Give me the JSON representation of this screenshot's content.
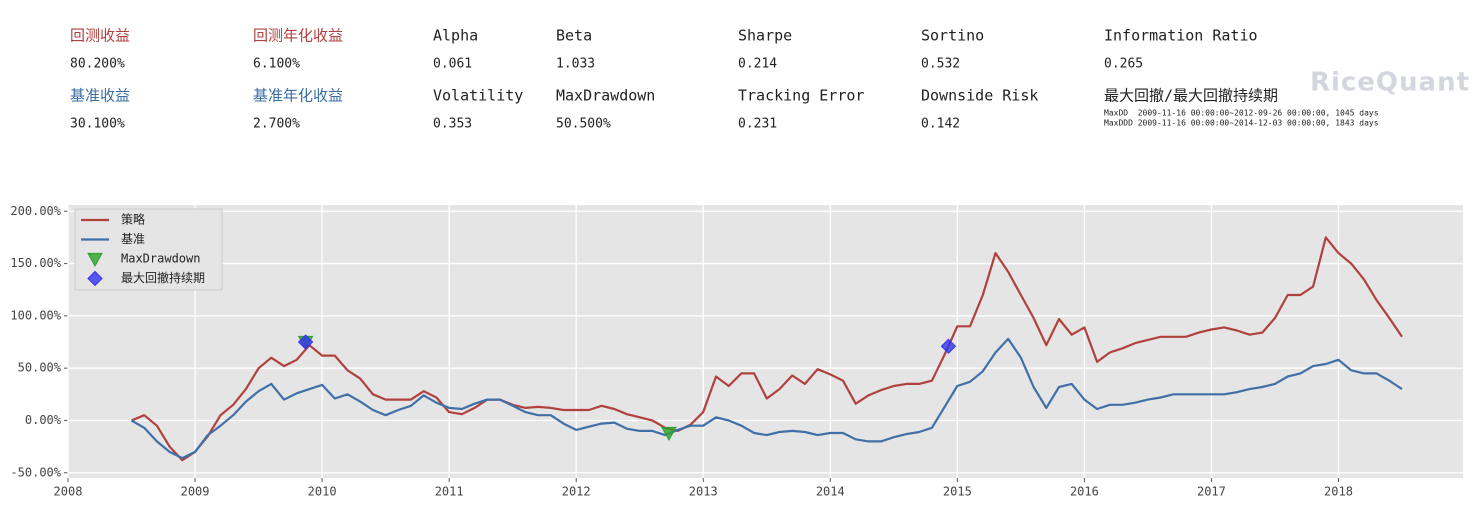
{
  "metrics": [
    [
      {
        "label": "回测收益",
        "value": "80.200%"
      },
      {
        "label": "回测年化收益",
        "value": "6.100%"
      },
      {
        "label": "Alpha",
        "value": "0.061"
      },
      {
        "label": "Beta",
        "value": "1.033"
      },
      {
        "label": "Sharpe",
        "value": "0.214"
      },
      {
        "label": "Sortino",
        "value": "0.532"
      },
      {
        "label": "Information Ratio",
        "value": "0.265"
      }
    ],
    [
      {
        "label": "基准收益",
        "value": "30.100%"
      },
      {
        "label": "基准年化收益",
        "value": "2.700%"
      },
      {
        "label": "Volatility",
        "value": "0.353"
      },
      {
        "label": "MaxDrawdown",
        "value": "50.500%"
      },
      {
        "label": "Tracking Error",
        "value": "0.231"
      },
      {
        "label": "Downside Risk",
        "value": "0.142"
      },
      {
        "label": "最大回撤/最大回撤持续期",
        "details": [
          "MaxDD  2009-11-16 00:00:00~2012-09-26 00:00:00, 1045 days",
          "MaxDDD 2009-11-16 00:00:00~2014-12-03 00:00:00, 1843 days"
        ]
      }
    ]
  ],
  "watermark": "RiceQuant",
  "chart_data": {
    "type": "line",
    "x": [
      2008.5,
      2008.6,
      2008.7,
      2008.8,
      2008.9,
      2009.0,
      2009.1,
      2009.2,
      2009.3,
      2009.4,
      2009.5,
      2009.6,
      2009.7,
      2009.8,
      2009.9,
      2010.0,
      2010.1,
      2010.2,
      2010.3,
      2010.4,
      2010.5,
      2010.6,
      2010.7,
      2010.8,
      2010.9,
      2011.0,
      2011.1,
      2011.2,
      2011.3,
      2011.4,
      2011.5,
      2011.6,
      2011.7,
      2011.8,
      2011.9,
      2012.0,
      2012.1,
      2012.2,
      2012.3,
      2012.4,
      2012.5,
      2012.6,
      2012.7,
      2012.8,
      2012.9,
      2013.0,
      2013.1,
      2013.2,
      2013.3,
      2013.4,
      2013.5,
      2013.6,
      2013.7,
      2013.8,
      2013.9,
      2014.0,
      2014.1,
      2014.2,
      2014.3,
      2014.4,
      2014.5,
      2014.6,
      2014.7,
      2014.8,
      2014.9,
      2015.0,
      2015.1,
      2015.2,
      2015.3,
      2015.4,
      2015.5,
      2015.6,
      2015.7,
      2015.8,
      2015.9,
      2016.0,
      2016.1,
      2016.2,
      2016.3,
      2016.4,
      2016.5,
      2016.6,
      2016.7,
      2016.8,
      2016.9,
      2017.0,
      2017.1,
      2017.2,
      2017.3,
      2017.4,
      2017.5,
      2017.6,
      2017.7,
      2017.8,
      2017.9,
      2018.0,
      2018.1,
      2018.2,
      2018.3,
      2018.4,
      2018.5
    ],
    "series": [
      {
        "name": "策略",
        "color": "#b0413e",
        "values": [
          0,
          5,
          -5,
          -25,
          -38,
          -30,
          -15,
          5,
          15,
          30,
          50,
          60,
          52,
          58,
          72,
          62,
          62,
          48,
          40,
          25,
          20,
          20,
          20,
          28,
          22,
          8,
          6,
          12,
          20,
          20,
          15,
          12,
          13,
          12,
          10,
          10,
          10,
          14,
          11,
          6,
          3,
          0,
          -7,
          -10,
          -4,
          8,
          42,
          33,
          45,
          45,
          21,
          30,
          43,
          35,
          49,
          44,
          38,
          16,
          24,
          29,
          33,
          35,
          35,
          38,
          63,
          90,
          90,
          120,
          160,
          142,
          120,
          98,
          72,
          97,
          82,
          89,
          56,
          65,
          69,
          74,
          77,
          80,
          80,
          80,
          84,
          87,
          89,
          86,
          82,
          84,
          98,
          120,
          120,
          128,
          175,
          160,
          150,
          135,
          115,
          98,
          80
        ]
      },
      {
        "name": "基准",
        "color": "#4170a8",
        "values": [
          0,
          -7,
          -20,
          -30,
          -36,
          -30,
          -14,
          -5,
          5,
          18,
          28,
          35,
          20,
          26,
          30,
          34,
          21,
          25,
          18,
          10,
          5,
          10,
          14,
          24,
          17,
          12,
          11,
          16,
          20,
          20,
          14,
          8,
          5,
          5,
          -3,
          -9,
          -6,
          -3,
          -2,
          -8,
          -10,
          -10,
          -14,
          -9,
          -5,
          -5,
          3,
          0,
          -5,
          -12,
          -14,
          -11,
          -10,
          -11,
          -14,
          -12,
          -12,
          -18,
          -20,
          -20,
          -16,
          -13,
          -11,
          -7,
          13,
          33,
          37,
          47,
          65,
          78,
          60,
          32,
          12,
          32,
          35,
          20,
          11,
          15,
          15,
          17,
          20,
          22,
          25,
          25,
          25,
          25,
          25,
          27,
          30,
          32,
          35,
          42,
          45,
          52,
          54,
          58,
          48,
          45,
          45,
          38,
          30
        ]
      }
    ],
    "markers": [
      {
        "name": "MaxDrawdown",
        "color": "#2ca02c",
        "shape": "triangle",
        "x": [
          2009.87,
          2012.73
        ],
        "values": [
          75,
          -12
        ]
      },
      {
        "name": "最大回撤持续期",
        "color": "#3333ee",
        "shape": "diamond",
        "x": [
          2009.87,
          2014.93
        ],
        "values": [
          75,
          71
        ]
      }
    ],
    "xlim": [
      2008,
      2018.98
    ],
    "xticks": [
      2008,
      2009,
      2010,
      2011,
      2012,
      2013,
      2014,
      2015,
      2016,
      2017,
      2018
    ],
    "ylim": [
      -55,
      206
    ],
    "yticks": [
      {
        "value": -50,
        "label": "-50.00%"
      },
      {
        "value": 0,
        "label": "0.00%"
      },
      {
        "value": 50,
        "label": "50.00%"
      },
      {
        "value": 100,
        "label": "100.00%"
      },
      {
        "value": 150,
        "label": "150.00%"
      },
      {
        "value": 200,
        "label": "200.00%"
      }
    ],
    "grid": true,
    "legend": "upper left"
  }
}
